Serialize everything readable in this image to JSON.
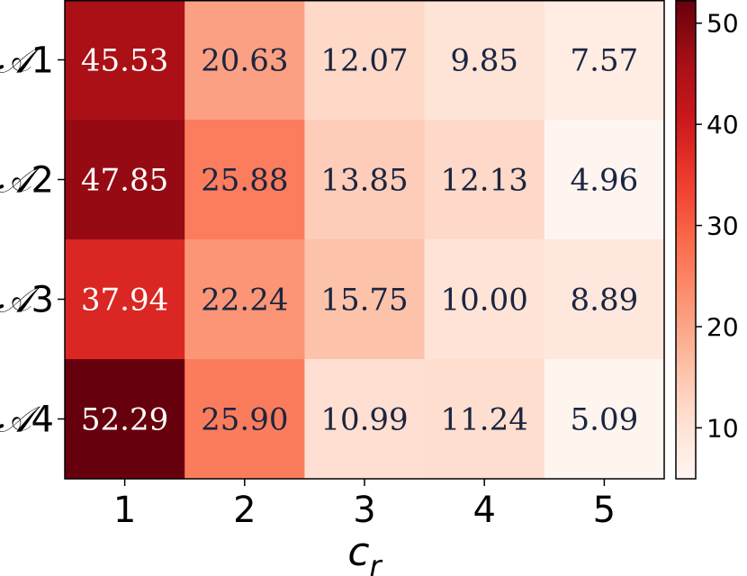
{
  "chart_data": {
    "type": "heatmap",
    "title": "",
    "xlabel": "c",
    "xlabel_sub": "r",
    "ylabel": "",
    "x_categories": [
      "1",
      "2",
      "3",
      "4",
      "5"
    ],
    "y_categories": [
      {
        "script": "𝒜",
        "num": "1"
      },
      {
        "script": "𝒜",
        "num": "2"
      },
      {
        "script": "𝒜",
        "num": "3"
      },
      {
        "script": "𝒜",
        "num": "4"
      }
    ],
    "values": [
      [
        45.53,
        20.63,
        12.07,
        9.85,
        7.57
      ],
      [
        47.85,
        25.88,
        13.85,
        12.13,
        4.96
      ],
      [
        37.94,
        22.24,
        15.75,
        10.0,
        8.89
      ],
      [
        52.29,
        25.9,
        10.99,
        11.24,
        5.09
      ]
    ],
    "value_labels": [
      [
        "45.53",
        "20.63",
        "12.07",
        "9.85",
        "7.57"
      ],
      [
        "47.85",
        "25.88",
        "13.85",
        "12.13",
        "4.96"
      ],
      [
        "37.94",
        "22.24",
        "15.75",
        "10.00",
        "8.89"
      ],
      [
        "52.29",
        "25.90",
        "10.99",
        "11.24",
        "5.09"
      ]
    ],
    "colormap": "Reds",
    "colorbar": {
      "range": [
        4.96,
        52.29
      ],
      "ticks": [
        10,
        20,
        30,
        40,
        50
      ],
      "tick_labels": [
        "10",
        "20",
        "30",
        "40",
        "50"
      ],
      "placement": "right"
    },
    "grid": false,
    "legend": "none",
    "text_color_dark": "#1b2540",
    "text_color_light": "#ffffff"
  }
}
